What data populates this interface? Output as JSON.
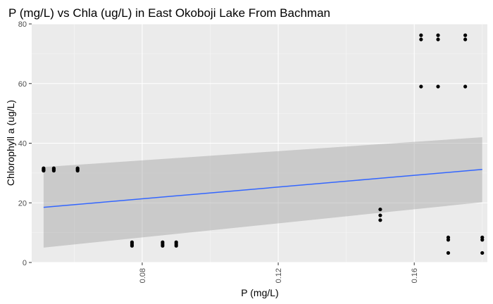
{
  "chart_data": {
    "type": "scatter",
    "title": "P (mg/L) vs Chla (ug/L) in East Okoboji Lake From Bachman",
    "xlabel": "P (mg/L)",
    "ylabel": "Chlorophyll a (ug/L)",
    "xlim": [
      0.0475,
      0.1815
    ],
    "ylim": [
      0,
      80
    ],
    "x_ticks": [
      0.08,
      0.12,
      0.16
    ],
    "x_tick_labels": [
      "0.08",
      "0.12",
      "0.16"
    ],
    "y_ticks": [
      0,
      20,
      40,
      60,
      80
    ],
    "y_tick_labels": [
      "0",
      "20",
      "40",
      "60",
      "80"
    ],
    "grid": true,
    "legend": "none",
    "points": [
      {
        "x": 0.051,
        "y": 30.8
      },
      {
        "x": 0.051,
        "y": 31.2
      },
      {
        "x": 0.051,
        "y": 31.6
      },
      {
        "x": 0.051,
        "y": 31.0
      },
      {
        "x": 0.054,
        "y": 30.8
      },
      {
        "x": 0.054,
        "y": 31.2
      },
      {
        "x": 0.054,
        "y": 31.6
      },
      {
        "x": 0.061,
        "y": 30.8
      },
      {
        "x": 0.061,
        "y": 31.2
      },
      {
        "x": 0.061,
        "y": 31.6
      },
      {
        "x": 0.077,
        "y": 5.6
      },
      {
        "x": 0.077,
        "y": 6.2
      },
      {
        "x": 0.077,
        "y": 6.8
      },
      {
        "x": 0.086,
        "y": 5.6
      },
      {
        "x": 0.086,
        "y": 6.2
      },
      {
        "x": 0.086,
        "y": 6.8
      },
      {
        "x": 0.09,
        "y": 5.6
      },
      {
        "x": 0.09,
        "y": 6.2
      },
      {
        "x": 0.09,
        "y": 6.8
      },
      {
        "x": 0.15,
        "y": 14.2
      },
      {
        "x": 0.15,
        "y": 15.8
      },
      {
        "x": 0.15,
        "y": 17.8
      },
      {
        "x": 0.162,
        "y": 59
      },
      {
        "x": 0.162,
        "y": 74.8
      },
      {
        "x": 0.162,
        "y": 76.2
      },
      {
        "x": 0.167,
        "y": 59
      },
      {
        "x": 0.167,
        "y": 74.8
      },
      {
        "x": 0.167,
        "y": 76.2
      },
      {
        "x": 0.17,
        "y": 3.2
      },
      {
        "x": 0.17,
        "y": 7.6
      },
      {
        "x": 0.17,
        "y": 8.4
      },
      {
        "x": 0.175,
        "y": 59
      },
      {
        "x": 0.175,
        "y": 74.8
      },
      {
        "x": 0.175,
        "y": 76.2
      },
      {
        "x": 0.18,
        "y": 3.2
      },
      {
        "x": 0.18,
        "y": 7.6
      },
      {
        "x": 0.18,
        "y": 8.4
      }
    ],
    "trend_line": {
      "x": [
        0.051,
        0.18
      ],
      "y": [
        18.5,
        31.2
      ],
      "color": "#3366ff"
    },
    "confidence_band": {
      "x": [
        0.051,
        0.18
      ],
      "lower": [
        5,
        20.2
      ],
      "upper": [
        32,
        42
      ],
      "color": "#999999"
    },
    "colors": {
      "panel_background": "#ebebeb",
      "grid_major": "#ffffff",
      "point": "#000000"
    }
  }
}
